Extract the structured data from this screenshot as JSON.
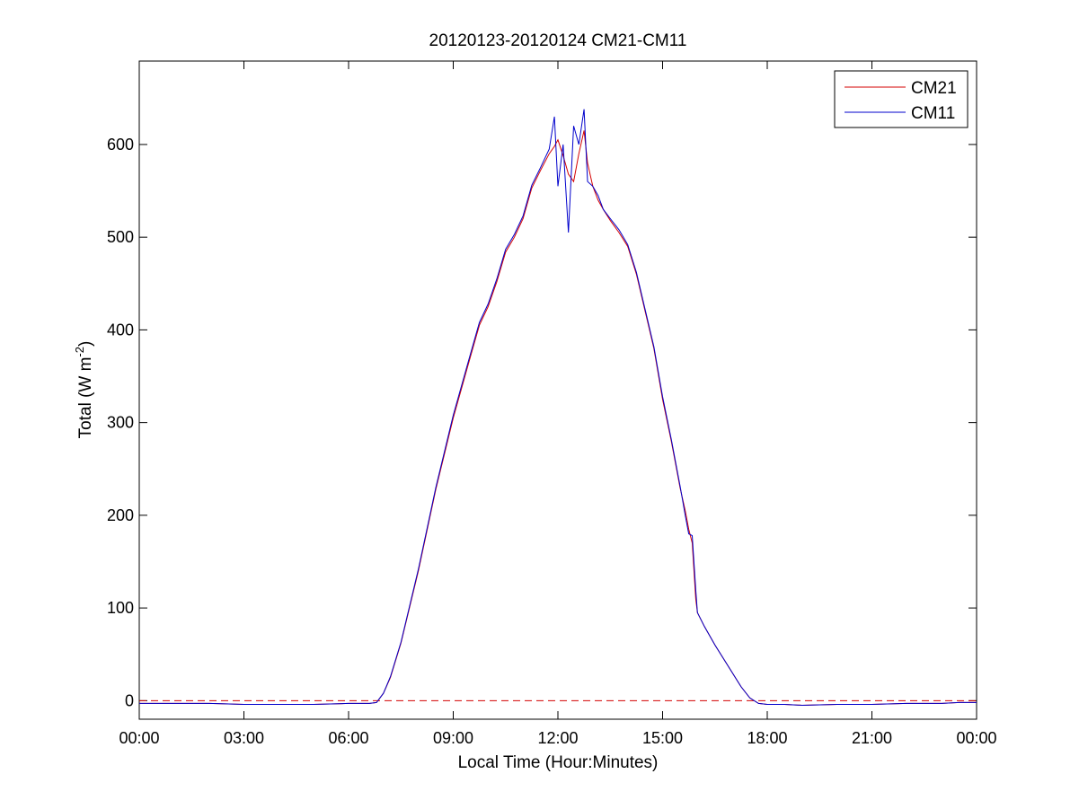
{
  "chart_data": {
    "type": "line",
    "title": "20120123-20120124 CM21-CM11",
    "xlabel": "Local Time (Hour:Minutes)",
    "ylabel": {
      "text": "Total (W m",
      "superscript": "-2",
      "close": ")"
    },
    "x_unit": "hours",
    "xlim": [
      0,
      24
    ],
    "ylim": [
      -20,
      690
    ],
    "x_ticks": [
      0,
      3,
      6,
      9,
      12,
      15,
      18,
      21,
      24
    ],
    "x_tick_labels": [
      "00:00",
      "03:00",
      "06:00",
      "09:00",
      "12:00",
      "15:00",
      "18:00",
      "21:00",
      "00:00"
    ],
    "y_ticks": [
      0,
      100,
      200,
      300,
      400,
      500,
      600
    ],
    "y_tick_labels": [
      "0",
      "100",
      "200",
      "300",
      "400",
      "500",
      "600"
    ],
    "grid": false,
    "legend_position": "top-right",
    "reference_line": {
      "y": 0,
      "color": "#d40000",
      "style": "dashed"
    },
    "series": [
      {
        "name": "CM21",
        "color": "#d40000",
        "x": [
          0,
          1,
          2,
          3,
          4,
          5,
          6,
          6.6,
          6.8,
          7.0,
          7.2,
          7.5,
          8.0,
          8.5,
          9.0,
          9.5,
          9.75,
          10.0,
          10.25,
          10.5,
          10.75,
          11.0,
          11.25,
          11.5,
          11.75,
          11.9,
          12.0,
          12.15,
          12.3,
          12.45,
          12.6,
          12.75,
          12.85,
          13.0,
          13.15,
          13.3,
          13.5,
          13.75,
          14.0,
          14.25,
          14.5,
          14.75,
          15.0,
          15.25,
          15.5,
          15.65,
          15.75,
          15.85,
          15.95,
          16.0,
          16.2,
          16.5,
          16.75,
          17.0,
          17.25,
          17.5,
          17.75,
          18.0,
          18.5,
          19.0,
          20.0,
          21.0,
          22.0,
          23.0,
          23.5,
          24.0
        ],
        "y": [
          -3,
          -3,
          -3,
          -4,
          -4,
          -4,
          -3,
          -3,
          -2,
          8,
          25,
          62,
          140,
          228,
          305,
          372,
          405,
          425,
          452,
          484,
          500,
          520,
          553,
          572,
          590,
          598,
          605,
          588,
          568,
          560,
          590,
          615,
          580,
          555,
          540,
          530,
          518,
          505,
          490,
          460,
          420,
          380,
          325,
          280,
          230,
          205,
          185,
          170,
          110,
          95,
          80,
          60,
          45,
          30,
          15,
          3,
          -3,
          -4,
          -4,
          -5,
          -4,
          -4,
          -3,
          -3,
          -2,
          -2
        ]
      },
      {
        "name": "CM11",
        "color": "#0000cc",
        "x": [
          0,
          1,
          2,
          3,
          4,
          5,
          6,
          6.6,
          6.8,
          7.0,
          7.2,
          7.5,
          8.0,
          8.5,
          9.0,
          9.5,
          9.75,
          10.0,
          10.25,
          10.5,
          10.75,
          11.0,
          11.25,
          11.5,
          11.75,
          11.9,
          12.0,
          12.15,
          12.3,
          12.45,
          12.6,
          12.75,
          12.85,
          13.0,
          13.15,
          13.3,
          13.5,
          13.75,
          14.0,
          14.25,
          14.5,
          14.75,
          15.0,
          15.25,
          15.5,
          15.65,
          15.75,
          15.85,
          15.95,
          16.0,
          16.2,
          16.5,
          16.75,
          17.0,
          17.25,
          17.5,
          17.75,
          18.0,
          18.5,
          19.0,
          20.0,
          21.0,
          22.0,
          23.0,
          23.5,
          24.0
        ],
        "y": [
          -3,
          -3,
          -3,
          -4,
          -4,
          -4,
          -3,
          -3,
          -2,
          8,
          26,
          63,
          142,
          230,
          308,
          375,
          408,
          428,
          455,
          487,
          503,
          523,
          556,
          575,
          595,
          630,
          555,
          600,
          505,
          620,
          600,
          638,
          560,
          555,
          545,
          530,
          520,
          508,
          492,
          462,
          422,
          382,
          328,
          282,
          232,
          200,
          180,
          178,
          120,
          95,
          80,
          60,
          45,
          30,
          15,
          3,
          -3,
          -4,
          -4,
          -5,
          -4,
          -4,
          -3,
          -3,
          -2,
          -2
        ]
      }
    ]
  }
}
